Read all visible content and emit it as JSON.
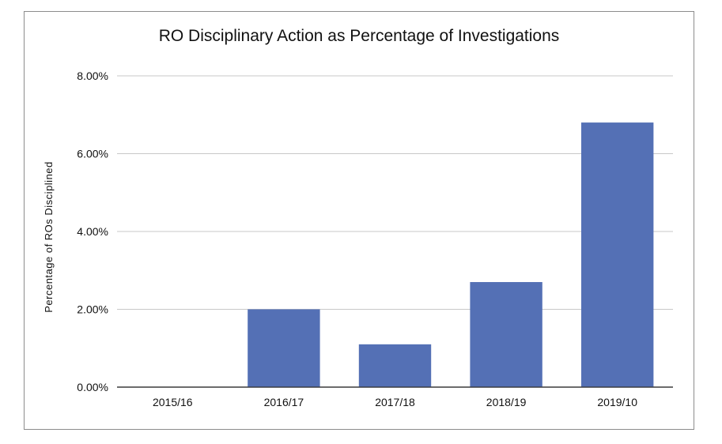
{
  "chart_data": {
    "type": "bar",
    "title": "RO Disciplinary Action as Percentage of Investigations",
    "xlabel": "",
    "ylabel": "Percentage of ROs Disciplined",
    "categories": [
      "2015/16",
      "2016/17",
      "2017/18",
      "2018/19",
      "2019/10"
    ],
    "values": [
      0.0,
      2.0,
      1.1,
      2.7,
      6.8
    ],
    "value_unit": "%",
    "ylim": [
      0,
      8
    ],
    "yticks": [
      0,
      2,
      4,
      6,
      8
    ],
    "ytick_labels": [
      "0.00%",
      "2.00%",
      "4.00%",
      "6.00%",
      "8.00%"
    ],
    "grid": true,
    "legend": "none",
    "bar_color": "#5470b5",
    "grid_color": "#c8c8c8"
  }
}
